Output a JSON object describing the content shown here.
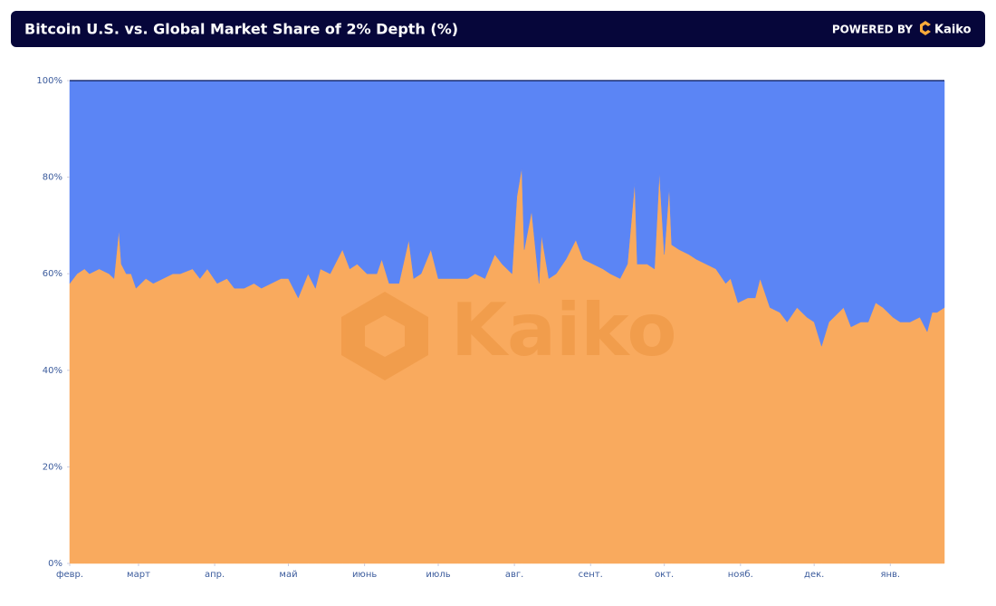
{
  "header": {
    "title": "Bitcoin U.S. vs. Global Market Share of 2% Depth (%)",
    "powered_by": "POWERED BY",
    "brand": "Kaiko"
  },
  "chart_data": {
    "type": "stacked_area",
    "x": [
      0,
      3,
      6,
      8,
      12,
      16,
      18,
      20,
      21,
      23,
      25,
      27,
      31,
      34,
      38,
      42,
      45,
      50,
      53,
      56,
      60,
      64,
      67,
      71,
      75,
      78,
      82,
      86,
      89,
      93,
      97,
      100,
      102,
      106,
      111,
      114,
      117,
      121,
      125,
      127,
      130,
      134,
      138,
      140,
      143,
      147,
      150,
      154,
      158,
      162,
      165,
      169,
      173,
      176,
      180,
      182,
      184,
      185,
      188,
      191,
      192,
      195,
      198,
      202,
      206,
      209,
      213,
      217,
      220,
      224,
      227,
      230,
      231,
      235,
      238,
      240,
      242,
      244,
      245,
      248,
      252,
      255,
      259,
      263,
      267,
      269,
      272,
      276,
      279,
      281,
      285,
      289,
      292,
      296,
      300,
      303,
      306,
      309,
      313,
      315,
      318,
      322,
      325,
      328,
      331,
      335,
      338,
      342,
      346,
      349,
      351,
      353,
      356
    ],
    "series": [
      {
        "color": "#f9aa5e",
        "values": [
          58,
          60,
          61,
          60,
          61,
          60,
          59,
          69,
          62,
          60,
          60,
          57,
          59,
          58,
          59,
          60,
          60,
          61,
          59,
          61,
          58,
          59,
          57,
          57,
          58,
          57,
          58,
          59,
          59,
          55,
          60,
          57,
          61,
          60,
          65,
          61,
          62,
          60,
          60,
          63,
          58,
          58,
          67,
          59,
          60,
          65,
          59,
          59,
          59,
          59,
          60,
          59,
          64,
          62,
          60,
          76,
          82,
          65,
          73,
          58,
          68,
          59,
          60,
          63,
          67,
          63,
          62,
          61,
          60,
          59,
          62,
          79,
          62,
          62,
          61,
          81,
          64,
          78,
          66,
          65,
          64,
          63,
          62,
          61,
          58,
          59,
          54,
          55,
          55,
          59,
          53,
          52,
          50,
          53,
          51,
          50,
          45,
          50,
          52,
          53,
          49,
          50,
          50,
          54,
          53,
          51,
          50,
          50,
          51,
          48,
          52,
          52,
          53
        ]
      },
      {
        "color": "#5b85f5",
        "values": [
          42,
          40,
          39,
          40,
          39,
          40,
          41,
          31,
          38,
          40,
          40,
          43,
          41,
          42,
          41,
          40,
          40,
          39,
          41,
          39,
          42,
          41,
          43,
          43,
          42,
          43,
          42,
          41,
          41,
          45,
          40,
          43,
          39,
          40,
          35,
          39,
          38,
          40,
          40,
          37,
          42,
          42,
          33,
          41,
          40,
          35,
          41,
          41,
          41,
          41,
          40,
          41,
          36,
          38,
          40,
          24,
          18,
          35,
          27,
          42,
          32,
          41,
          40,
          37,
          33,
          37,
          38,
          39,
          40,
          41,
          38,
          21,
          38,
          38,
          39,
          19,
          36,
          22,
          34,
          35,
          36,
          37,
          38,
          39,
          42,
          41,
          46,
          45,
          45,
          41,
          47,
          48,
          50,
          47,
          49,
          50,
          55,
          50,
          48,
          47,
          51,
          50,
          50,
          46,
          47,
          49,
          50,
          50,
          49,
          52,
          48,
          48,
          47
        ]
      }
    ],
    "xlim": [
      0,
      356
    ],
    "xticks": [
      {
        "value": 0,
        "label": "февр."
      },
      {
        "value": 28,
        "label": "март"
      },
      {
        "value": 59,
        "label": "апр."
      },
      {
        "value": 89,
        "label": "май"
      },
      {
        "value": 120,
        "label": "июнь"
      },
      {
        "value": 150,
        "label": "июль"
      },
      {
        "value": 181,
        "label": "авг."
      },
      {
        "value": 212,
        "label": "сент."
      },
      {
        "value": 242,
        "label": "окт."
      },
      {
        "value": 273,
        "label": "нояб."
      },
      {
        "value": 303,
        "label": "дек."
      },
      {
        "value": 334,
        "label": "янв."
      }
    ],
    "ylim": [
      0,
      100
    ],
    "yticks": [
      {
        "value": 0,
        "label": "0%"
      },
      {
        "value": 20,
        "label": "20%"
      },
      {
        "value": 40,
        "label": "40%"
      },
      {
        "value": 60,
        "label": "60%"
      },
      {
        "value": 80,
        "label": "80%"
      },
      {
        "value": 100,
        "label": "100%"
      }
    ]
  }
}
